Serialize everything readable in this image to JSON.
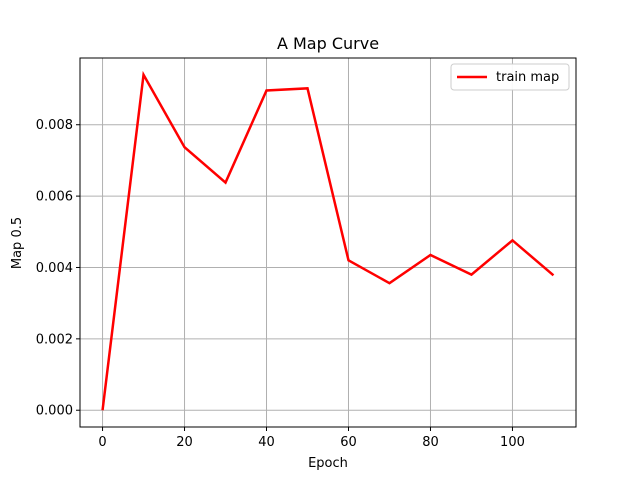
{
  "chart_data": {
    "type": "line",
    "title": "A Map Curve",
    "xlabel": "Epoch",
    "ylabel": "Map 0.5",
    "xlim": [
      -5.5,
      115.5
    ],
    "ylim": [
      -0.00047,
      0.00987
    ],
    "xticks": [
      0,
      20,
      40,
      60,
      80,
      100
    ],
    "xtick_labels": [
      "0",
      "20",
      "40",
      "60",
      "80",
      "100"
    ],
    "yticks": [
      0.0,
      0.002,
      0.004,
      0.006,
      0.008
    ],
    "ytick_labels": [
      "0.000",
      "0.002",
      "0.004",
      "0.006",
      "0.008"
    ],
    "grid": true,
    "legend_position": "top-right",
    "series": [
      {
        "name": "train map",
        "color": "#ff0000",
        "x": [
          0,
          10,
          20,
          30,
          40,
          50,
          60,
          70,
          80,
          90,
          100,
          110
        ],
        "y": [
          0.0,
          0.0094,
          0.00737,
          0.00638,
          0.00896,
          0.00902,
          0.0042,
          0.00356,
          0.00435,
          0.0038,
          0.00476,
          0.00378
        ]
      }
    ]
  }
}
